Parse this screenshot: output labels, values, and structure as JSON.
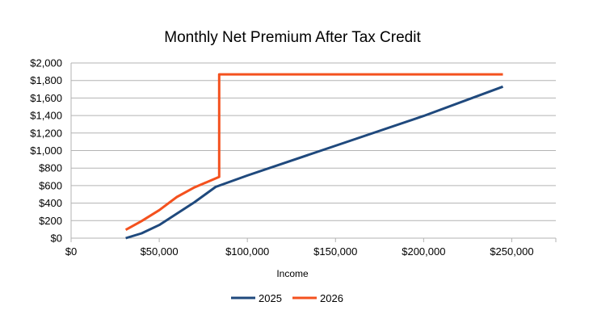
{
  "chart_data": {
    "type": "line",
    "title": "Monthly Net Premium After Tax Credit",
    "xlabel": "Income",
    "ylabel": "",
    "xlim": [
      0,
      275000
    ],
    "ylim": [
      0,
      2000
    ],
    "x_ticks": [
      0,
      50000,
      100000,
      150000,
      200000,
      250000
    ],
    "x_tick_labels": [
      "$0",
      "$50,000",
      "$100,000",
      "$150,000",
      "$200,000",
      "$250,000"
    ],
    "y_ticks": [
      0,
      200,
      400,
      600,
      800,
      1000,
      1200,
      1400,
      1600,
      1800,
      2000
    ],
    "y_tick_labels": [
      "$0",
      "$200",
      "$400",
      "$600",
      "$800",
      "$1,000",
      "$1,200",
      "$1,400",
      "$1,600",
      "$1,800",
      "$2,000"
    ],
    "grid": "horizontal",
    "legend_position": "bottom",
    "series": [
      {
        "name": "2025",
        "color": "#1f497d",
        "points": [
          [
            31000,
            0
          ],
          [
            40000,
            55
          ],
          [
            50000,
            150
          ],
          [
            60000,
            280
          ],
          [
            70000,
            410
          ],
          [
            82000,
            585
          ],
          [
            100000,
            715
          ],
          [
            150000,
            1055
          ],
          [
            200000,
            1395
          ],
          [
            245000,
            1730
          ]
        ]
      },
      {
        "name": "2026",
        "color": "#f4511e",
        "points": [
          [
            31000,
            95
          ],
          [
            40000,
            195
          ],
          [
            50000,
            320
          ],
          [
            60000,
            470
          ],
          [
            70000,
            580
          ],
          [
            84000,
            700
          ],
          [
            84000,
            1870
          ],
          [
            245000,
            1870
          ]
        ]
      }
    ]
  }
}
